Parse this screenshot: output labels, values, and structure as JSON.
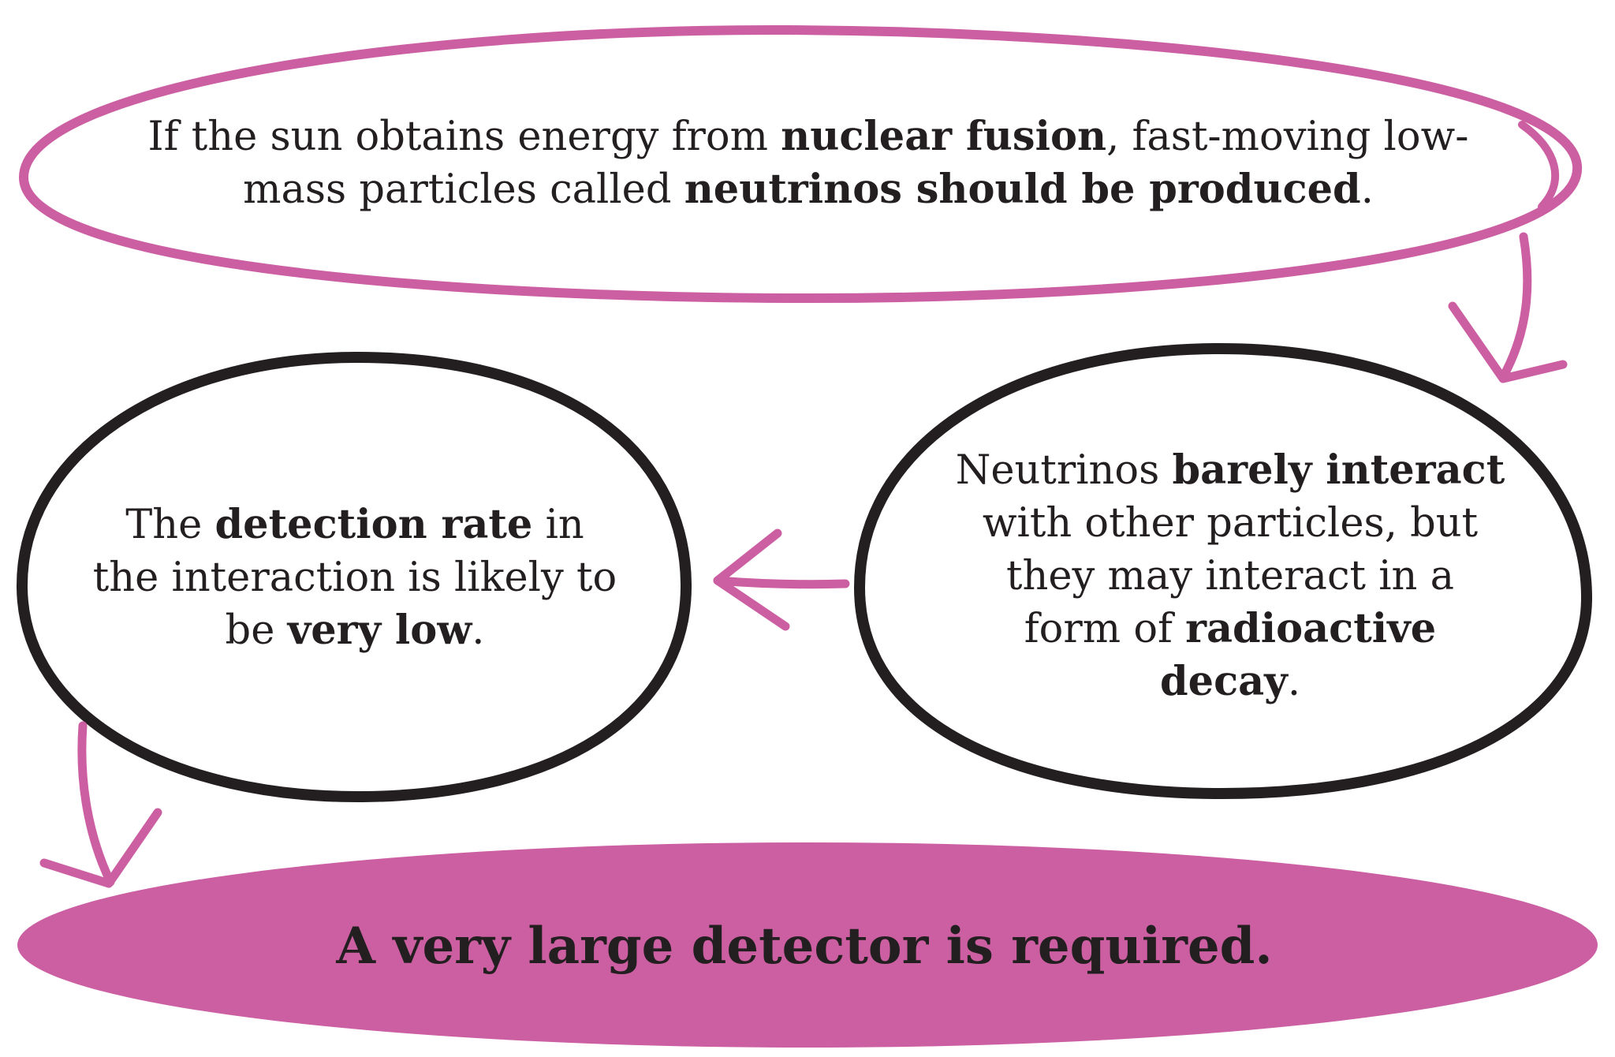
{
  "colors": {
    "accent": "#cc5fa2",
    "ink": "#231f20",
    "background": "#ffffff"
  },
  "nodes": {
    "top": {
      "parts": [
        {
          "text": "If the sun obtains energy from ",
          "bold": false
        },
        {
          "text": "nuclear fusion",
          "bold": true
        },
        {
          "text": ", fast-moving low-mass particles called ",
          "bold": false
        },
        {
          "text": "neutrinos should be produced",
          "bold": true
        },
        {
          "text": ".",
          "bold": false
        }
      ]
    },
    "right": {
      "parts": [
        {
          "text": "Neutrinos ",
          "bold": false
        },
        {
          "text": "barely interact",
          "bold": true
        },
        {
          "text": " with other particles, but they may interact in a form of ",
          "bold": false
        },
        {
          "text": "radioactive decay",
          "bold": true
        },
        {
          "text": ".",
          "bold": false
        }
      ]
    },
    "left": {
      "parts": [
        {
          "text": "The ",
          "bold": false
        },
        {
          "text": "detection rate",
          "bold": true
        },
        {
          "text": " in the interaction is likely to be ",
          "bold": false
        },
        {
          "text": "very low",
          "bold": true
        },
        {
          "text": ".",
          "bold": false
        }
      ]
    },
    "bottom": {
      "text": "A very large detector is required."
    }
  },
  "arrows": [
    {
      "from": "top",
      "to": "right"
    },
    {
      "from": "right",
      "to": "left"
    },
    {
      "from": "left",
      "to": "bottom"
    }
  ]
}
